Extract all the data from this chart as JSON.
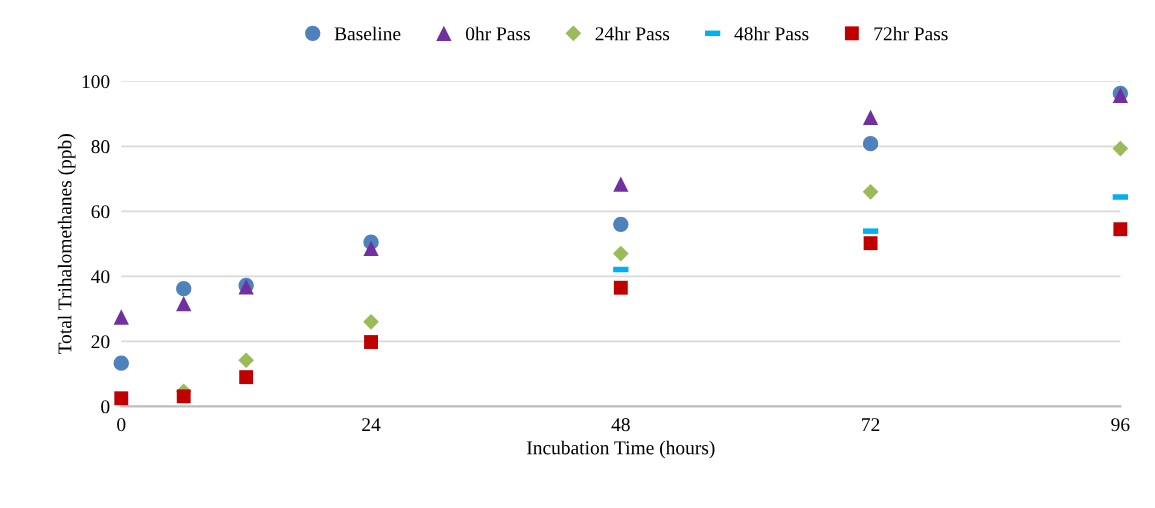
{
  "chart_data": {
    "type": "scatter",
    "xlabel": "Incubation Time (hours)",
    "ylabel": "Total Trihalomethanes (ppb)",
    "x": [
      0,
      6,
      12,
      24,
      48,
      72,
      96
    ],
    "series": [
      {
        "name": "Baseline",
        "color": "#4f81bd",
        "marker": "circle",
        "values": [
          13.3,
          36.2,
          37.2,
          50.5,
          56,
          80.8,
          96.3
        ]
      },
      {
        "name": "0hr Pass",
        "color": "#7030a0",
        "marker": "triangle",
        "values": [
          27.5,
          31.6,
          36.8,
          48.6,
          68.4,
          88.9,
          95.7
        ]
      },
      {
        "name": "24hr Pass",
        "color": "#9bbb59",
        "marker": "diamond",
        "values": [
          null,
          4.6,
          14.2,
          26,
          47,
          66,
          79.3
        ]
      },
      {
        "name": "48hr Pass",
        "color": "#00b0f0",
        "values": [
          null,
          null,
          null,
          null,
          42.1,
          53.9,
          64.4
        ]
      },
      {
        "name": "72hr Pass",
        "color": "#c00000",
        "marker": "square",
        "values": [
          2.5,
          3.1,
          9,
          19.8,
          36.5,
          50.2,
          54.5
        ]
      }
    ],
    "xlim": [
      0,
      96
    ],
    "xticks": [
      0,
      24,
      48,
      72,
      96
    ],
    "ylim": [
      0,
      100
    ],
    "yticks": [
      0,
      20,
      40,
      60,
      80,
      100
    ],
    "grid": "y",
    "legend": "top"
  }
}
